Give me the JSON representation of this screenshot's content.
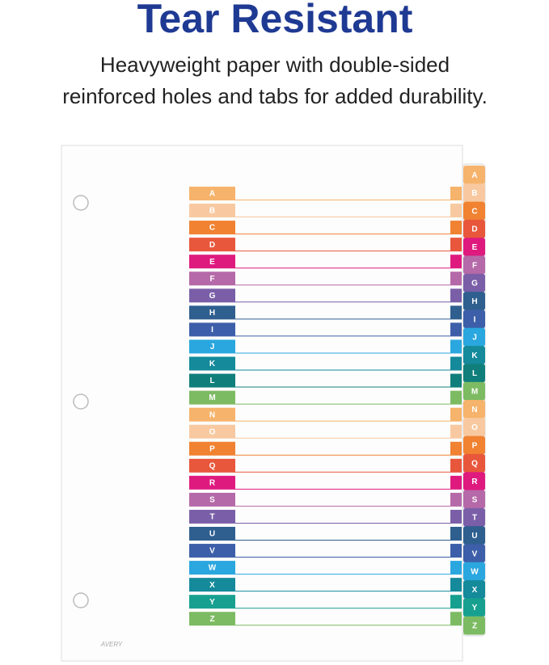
{
  "header": {
    "title": "Tear Resistant",
    "subtitle_lines": [
      "Heavyweight paper with double-sided",
      "reinforced holes and tabs for added durability."
    ]
  },
  "brand": "AVERY",
  "tabs": [
    {
      "letter": "A",
      "color": "#f6b36b"
    },
    {
      "letter": "B",
      "color": "#f8c9a0"
    },
    {
      "letter": "C",
      "color": "#f08232"
    },
    {
      "letter": "D",
      "color": "#e8573c"
    },
    {
      "letter": "E",
      "color": "#df1a7f"
    },
    {
      "letter": "F",
      "color": "#b569a8"
    },
    {
      "letter": "G",
      "color": "#7a5fa8"
    },
    {
      "letter": "H",
      "color": "#2f5f8f"
    },
    {
      "letter": "I",
      "color": "#3d5fa9"
    },
    {
      "letter": "J",
      "color": "#2aa7df"
    },
    {
      "letter": "K",
      "color": "#148a9b"
    },
    {
      "letter": "L",
      "color": "#107f7b"
    },
    {
      "letter": "M",
      "color": "#7dbb63"
    },
    {
      "letter": "N",
      "color": "#f6b36b"
    },
    {
      "letter": "O",
      "color": "#f8c9a0"
    },
    {
      "letter": "P",
      "color": "#f08232"
    },
    {
      "letter": "Q",
      "color": "#e8573c"
    },
    {
      "letter": "R",
      "color": "#df1a7f"
    },
    {
      "letter": "S",
      "color": "#b569a8"
    },
    {
      "letter": "T",
      "color": "#7a5fa8"
    },
    {
      "letter": "U",
      "color": "#2f5f8f"
    },
    {
      "letter": "V",
      "color": "#3d5fa9"
    },
    {
      "letter": "W",
      "color": "#2aa7df"
    },
    {
      "letter": "X",
      "color": "#148a9b"
    },
    {
      "letter": "Y",
      "color": "#17a08f"
    },
    {
      "letter": "Z",
      "color": "#7dbb63"
    }
  ]
}
